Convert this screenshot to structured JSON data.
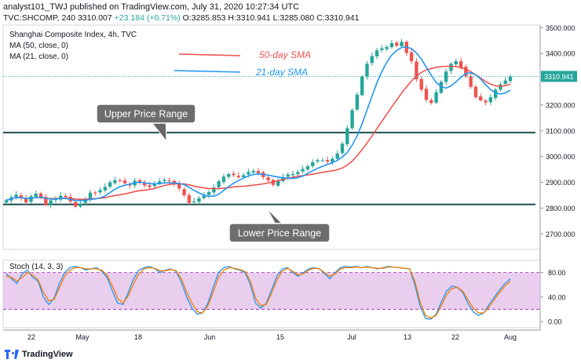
{
  "header": {
    "line1": "analyst101_TWJ published on TradingView.com, July 31, 2020 10:27:34 UTC",
    "symbol": "TVC:SHCOMP, 240",
    "last": "3310.007",
    "change": "+23.184 (+0.71%)",
    "ohlc": "O:3285.853 H:3310.941 L:3285.080 C:3310.941"
  },
  "footer": {
    "brand": "TradingView"
  },
  "colors": {
    "up": "#26a69a",
    "down": "#ef5350",
    "ma50": "#ef5350",
    "ma21": "#2196f3",
    "range": "#1f4e4e",
    "stoch_k": "#2196f3",
    "stoch_d": "#f57c00",
    "stoch_band": "#e1bee7"
  },
  "chart_data": [
    {
      "type": "candlestick",
      "title": "Shanghai Composite Index, 4h, TVC",
      "legend": [
        "MA (50, close, 0)",
        "MA (21, close, 0)"
      ],
      "ylim": [
        2640,
        3510
      ],
      "y_ticks": [
        2700,
        2800,
        2900,
        3000,
        3100,
        3200,
        3300,
        3400,
        3500
      ],
      "y_tick_labels": [
        "2700.000",
        "2800.000",
        "2900.000",
        "3000.000",
        "3100.000",
        "3200.000",
        "3300.000",
        "3400.000",
        "3500.000"
      ],
      "x_ticks": [
        "22",
        "May",
        "18",
        "Jun",
        "15",
        "Jul",
        "13",
        "22",
        "Aug"
      ],
      "last_price_label": "3310.941",
      "last_price": 3310.941,
      "annotations": [
        {
          "id": "ma50",
          "text": "50-day SMA"
        },
        {
          "id": "ma21",
          "text": "21-day SMA"
        },
        {
          "id": "upper",
          "text": "Upper Price Range",
          "level": 3093
        },
        {
          "id": "lower",
          "text": "Lower Price Range",
          "level": 2814
        }
      ],
      "close_path": [
        2830,
        2842,
        2852,
        2838,
        2822,
        2846,
        2856,
        2840,
        2812,
        2830,
        2836,
        2848,
        2842,
        2826,
        2806,
        2818,
        2836,
        2860,
        2858,
        2870,
        2882,
        2900,
        2908,
        2905,
        2896,
        2888,
        2906,
        2900,
        2888,
        2882,
        2896,
        2904,
        2910,
        2906,
        2894,
        2876,
        2850,
        2820,
        2826,
        2838,
        2848,
        2862,
        2880,
        2904,
        2922,
        2932,
        2928,
        2920,
        2928,
        2940,
        2944,
        2936,
        2920,
        2908,
        2890,
        2905,
        2920,
        2930,
        2932,
        2940,
        2952,
        2962,
        2978,
        2986,
        2985,
        2980,
        2992,
        3012,
        3050,
        3110,
        3180,
        3240,
        3310,
        3360,
        3390,
        3412,
        3420,
        3425,
        3440,
        3430,
        3445,
        3402,
        3370,
        3300,
        3260,
        3220,
        3208,
        3250,
        3290,
        3330,
        3360,
        3370,
        3346,
        3312,
        3270,
        3230,
        3218,
        3210,
        3230,
        3260,
        3280,
        3295,
        3310
      ]
    },
    {
      "type": "line",
      "title": "Stoch (14, 3, 3)",
      "ylim": [
        -10,
        100
      ],
      "y_ticks": [
        0,
        40,
        80
      ],
      "y_tick_labels": [
        "0.00",
        "40.00",
        "80.00"
      ],
      "band": [
        20,
        80
      ],
      "series": [
        {
          "id": "k",
          "values": [
            78,
            70,
            62,
            78,
            84,
            72,
            66,
            40,
            28,
            38,
            62,
            80,
            88,
            90,
            88,
            84,
            86,
            88,
            82,
            72,
            50,
            30,
            28,
            48,
            70,
            84,
            88,
            90,
            86,
            80,
            84,
            86,
            82,
            64,
            40,
            22,
            12,
            14,
            30,
            56,
            80,
            88,
            90,
            86,
            84,
            80,
            60,
            30,
            22,
            30,
            52,
            74,
            86,
            88,
            80,
            74,
            80,
            86,
            88,
            86,
            78,
            70,
            80,
            88,
            90,
            89,
            90,
            88,
            90,
            88,
            86,
            88,
            90,
            89,
            88,
            87,
            86,
            60,
            25,
            5,
            4,
            12,
            32,
            50,
            58,
            56,
            48,
            30,
            16,
            10,
            14,
            28,
            40,
            52,
            62,
            70
          ]
        },
        {
          "id": "d",
          "values": [
            74,
            72,
            66,
            72,
            80,
            76,
            68,
            48,
            34,
            36,
            55,
            74,
            84,
            88,
            88,
            86,
            86,
            86,
            84,
            76,
            58,
            38,
            30,
            42,
            62,
            78,
            86,
            88,
            87,
            83,
            83,
            85,
            83,
            70,
            48,
            30,
            16,
            14,
            26,
            48,
            72,
            84,
            88,
            87,
            85,
            82,
            66,
            38,
            26,
            28,
            46,
            68,
            82,
            87,
            82,
            76,
            78,
            84,
            87,
            86,
            80,
            74,
            78,
            86,
            88,
            88,
            89,
            88,
            89,
            88,
            87,
            87,
            89,
            89,
            88,
            87,
            86,
            66,
            32,
            10,
            6,
            10,
            26,
            44,
            54,
            56,
            50,
            36,
            22,
            14,
            14,
            24,
            36,
            48,
            58,
            66
          ]
        }
      ]
    }
  ]
}
